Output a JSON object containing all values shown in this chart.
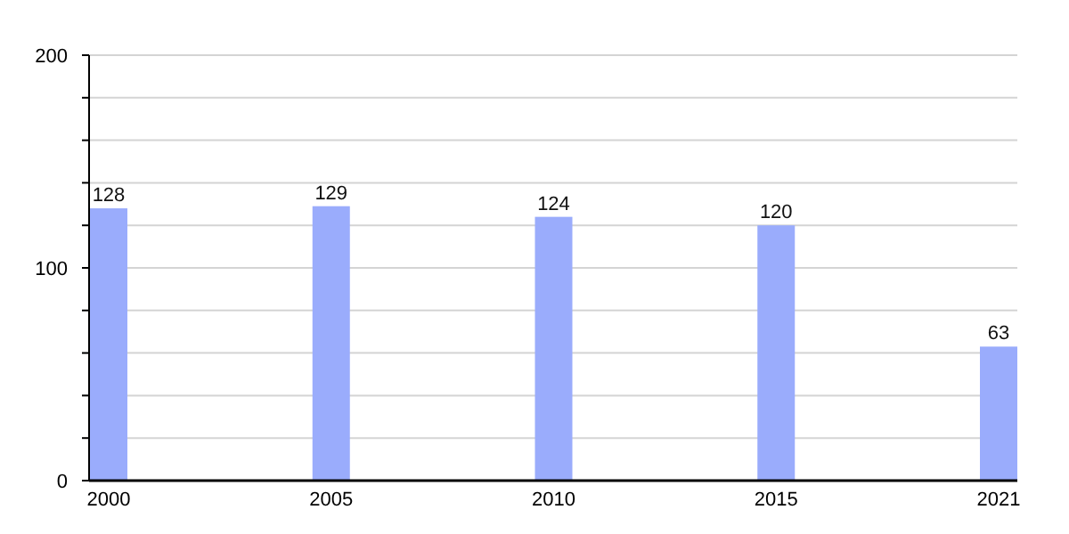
{
  "chart_data": {
    "type": "bar",
    "categories": [
      "2000",
      "2005",
      "2010",
      "2015",
      "2021"
    ],
    "values": [
      128,
      129,
      124,
      120,
      63
    ],
    "color": "#9aacfc",
    "ylim": [
      0,
      200
    ],
    "yticks": [
      0,
      {
        "value": 20,
        "label": null
      },
      {
        "value": 40,
        "label": null
      },
      {
        "value": 60,
        "label": null
      },
      {
        "value": 80,
        "label": null
      },
      100,
      {
        "value": 120,
        "label": null
      },
      {
        "value": 140,
        "label": null
      },
      {
        "value": 160,
        "label": null
      },
      {
        "value": 180,
        "label": null
      },
      200
    ],
    "grid": true,
    "data_labels": true
  }
}
